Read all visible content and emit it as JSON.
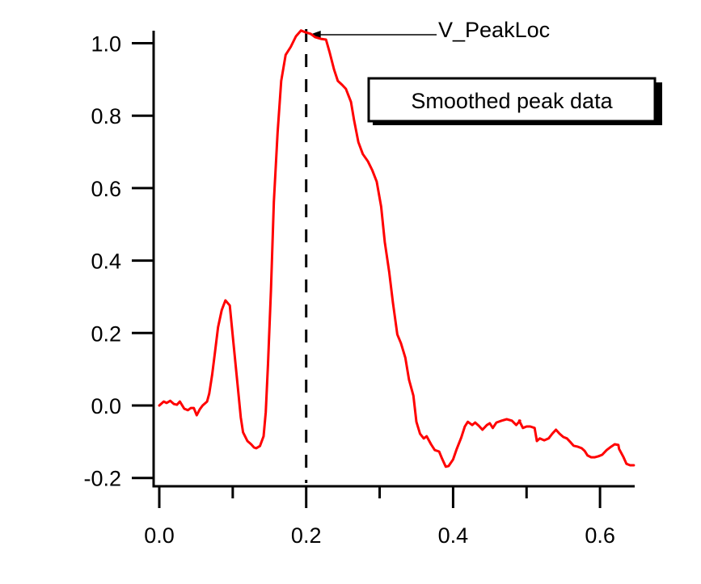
{
  "chart_data": {
    "type": "line",
    "title": "",
    "xlabel": "",
    "ylabel": "",
    "xlim": [
      -0.008,
      0.645
    ],
    "ylim": [
      -0.22,
      1.06
    ],
    "grid": false,
    "x_ticks": [
      {
        "value": 0.0,
        "label": "0.0"
      },
      {
        "value": 0.2,
        "label": "0.2"
      },
      {
        "value": 0.4,
        "label": "0.4"
      },
      {
        "value": 0.6,
        "label": "0.6"
      }
    ],
    "x_minor_ticks": [
      0.1,
      0.3,
      0.5
    ],
    "y_ticks": [
      {
        "value": -0.2,
        "label": "-0.2"
      },
      {
        "value": 0.0,
        "label": "0.0"
      },
      {
        "value": 0.2,
        "label": "0.2"
      },
      {
        "value": 0.4,
        "label": "0.4"
      },
      {
        "value": 0.6,
        "label": "0.6"
      },
      {
        "value": 0.8,
        "label": "0.8"
      },
      {
        "value": 1.0,
        "label": "1.0"
      }
    ],
    "legend": {
      "text": "Smoothed peak data",
      "placement": "top-right"
    },
    "series": [
      {
        "name": "Smoothed peak data",
        "color": "#ff0000",
        "x": [
          0.0,
          0.006,
          0.01,
          0.015,
          0.02,
          0.024,
          0.028,
          0.034,
          0.039,
          0.043,
          0.047,
          0.051,
          0.055,
          0.059,
          0.065,
          0.068,
          0.072,
          0.076,
          0.08,
          0.085,
          0.09,
          0.096,
          0.101,
          0.107,
          0.111,
          0.114,
          0.12,
          0.125,
          0.129,
          0.132,
          0.137,
          0.142,
          0.145,
          0.148,
          0.152,
          0.156,
          0.161,
          0.166,
          0.172,
          0.179,
          0.186,
          0.193,
          0.199,
          0.206,
          0.212,
          0.22,
          0.227,
          0.232,
          0.238,
          0.243,
          0.249,
          0.254,
          0.261,
          0.265,
          0.271,
          0.277,
          0.284,
          0.29,
          0.296,
          0.302,
          0.307,
          0.313,
          0.318,
          0.324,
          0.329,
          0.335,
          0.34,
          0.346,
          0.35,
          0.355,
          0.36,
          0.364,
          0.37,
          0.375,
          0.381,
          0.385,
          0.39,
          0.394,
          0.4,
          0.405,
          0.411,
          0.416,
          0.42,
          0.426,
          0.43,
          0.435,
          0.44,
          0.446,
          0.45,
          0.454,
          0.459,
          0.466,
          0.473,
          0.48,
          0.486,
          0.491,
          0.49,
          0.495,
          0.5,
          0.505,
          0.511,
          0.514,
          0.518,
          0.524,
          0.53,
          0.535,
          0.54,
          0.545,
          0.55,
          0.555,
          0.56,
          0.564,
          0.57,
          0.575,
          0.579,
          0.583,
          0.588,
          0.593,
          0.598,
          0.603,
          0.609,
          0.615,
          0.62,
          0.625,
          0.626,
          0.632,
          0.636,
          0.641,
          0.646
        ],
        "y": [
          0.0,
          0.011,
          0.007,
          0.013,
          0.004,
          0.002,
          0.011,
          -0.009,
          -0.013,
          -0.007,
          -0.007,
          -0.027,
          -0.011,
          0.0,
          0.011,
          0.033,
          0.085,
          0.149,
          0.216,
          0.263,
          0.29,
          0.276,
          0.171,
          0.049,
          -0.033,
          -0.074,
          -0.098,
          -0.107,
          -0.116,
          -0.118,
          -0.112,
          -0.085,
          -0.018,
          0.116,
          0.317,
          0.562,
          0.752,
          0.896,
          0.968,
          0.99,
          1.019,
          1.035,
          1.03,
          1.026,
          1.017,
          1.012,
          1.01,
          0.974,
          0.927,
          0.896,
          0.885,
          0.874,
          0.838,
          0.789,
          0.727,
          0.694,
          0.674,
          0.649,
          0.618,
          0.549,
          0.451,
          0.368,
          0.285,
          0.196,
          0.172,
          0.132,
          0.071,
          0.027,
          -0.045,
          -0.078,
          -0.091,
          -0.085,
          -0.107,
          -0.123,
          -0.127,
          -0.147,
          -0.169,
          -0.167,
          -0.149,
          -0.12,
          -0.089,
          -0.058,
          -0.045,
          -0.054,
          -0.047,
          -0.056,
          -0.067,
          -0.054,
          -0.049,
          -0.062,
          -0.047,
          -0.042,
          -0.038,
          -0.042,
          -0.054,
          -0.042,
          -0.042,
          -0.062,
          -0.058,
          -0.058,
          -0.062,
          -0.098,
          -0.091,
          -0.096,
          -0.091,
          -0.078,
          -0.067,
          -0.078,
          -0.087,
          -0.091,
          -0.102,
          -0.111,
          -0.114,
          -0.118,
          -0.125,
          -0.138,
          -0.143,
          -0.143,
          -0.14,
          -0.136,
          -0.123,
          -0.114,
          -0.107,
          -0.109,
          -0.12,
          -0.143,
          -0.161,
          -0.165,
          -0.165
        ]
      }
    ],
    "annotations": [
      {
        "type": "vertical-dashed-line",
        "x": 0.2,
        "color": "#000000"
      },
      {
        "type": "arrow-label",
        "text": "V_PeakLoc",
        "points_to": {
          "x": 0.2,
          "y": 1.03
        }
      }
    ]
  }
}
